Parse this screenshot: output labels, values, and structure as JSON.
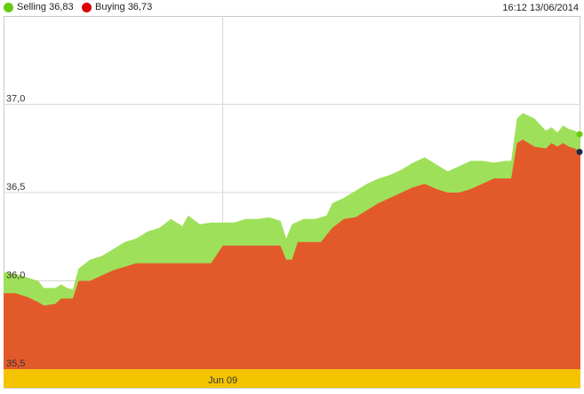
{
  "header": {
    "selling_label": "Selling 36,83",
    "buying_label": "Buying 36,73",
    "timestamp": "16:12 13/06/2014"
  },
  "colors": {
    "selling": "#9fe05a",
    "selling_dot": "#66cc11",
    "buying": "#e35a2a",
    "buying_dot": "#d90000",
    "axis_band": "#f5c400",
    "grid": "#d8d8d8"
  },
  "chart_data": {
    "type": "area",
    "ylim": [
      35.5,
      37.5
    ],
    "yticks": [
      {
        "value": 35.5,
        "label": "35,5"
      },
      {
        "value": 36.0,
        "label": "36,0"
      },
      {
        "value": 36.5,
        "label": "36,5"
      },
      {
        "value": 37.0,
        "label": "37,0"
      }
    ],
    "xlim": [
      0,
      100
    ],
    "xticks": [
      {
        "value": 38,
        "label": "Jun 09"
      }
    ],
    "grid": true,
    "series": [
      {
        "name": "Selling",
        "values": [
          [
            0,
            36.05
          ],
          [
            2,
            36.04
          ],
          [
            4,
            36.02
          ],
          [
            6,
            36.0
          ],
          [
            7,
            35.96
          ],
          [
            9,
            35.96
          ],
          [
            10,
            35.98
          ],
          [
            11,
            35.96
          ],
          [
            12,
            35.95
          ],
          [
            13,
            36.07
          ],
          [
            15,
            36.12
          ],
          [
            17,
            36.14
          ],
          [
            19,
            36.18
          ],
          [
            21,
            36.22
          ],
          [
            23,
            36.24
          ],
          [
            25,
            36.28
          ],
          [
            27,
            36.3
          ],
          [
            29,
            36.35
          ],
          [
            31,
            36.31
          ],
          [
            32,
            36.37
          ],
          [
            34,
            36.32
          ],
          [
            36,
            36.33
          ],
          [
            38,
            36.33
          ],
          [
            40,
            36.33
          ],
          [
            42,
            36.35
          ],
          [
            44,
            36.35
          ],
          [
            46,
            36.36
          ],
          [
            48,
            36.34
          ],
          [
            49,
            36.24
          ],
          [
            50,
            36.32
          ],
          [
            52,
            36.35
          ],
          [
            54,
            36.35
          ],
          [
            56,
            36.37
          ],
          [
            57,
            36.44
          ],
          [
            59,
            36.47
          ],
          [
            61,
            36.51
          ],
          [
            63,
            36.55
          ],
          [
            65,
            36.58
          ],
          [
            67,
            36.6
          ],
          [
            69,
            36.63
          ],
          [
            71,
            36.67
          ],
          [
            73,
            36.7
          ],
          [
            75,
            36.66
          ],
          [
            77,
            36.62
          ],
          [
            79,
            36.65
          ],
          [
            81,
            36.68
          ],
          [
            83,
            36.68
          ],
          [
            85,
            36.67
          ],
          [
            87,
            36.68
          ],
          [
            88,
            36.68
          ],
          [
            89,
            36.92
          ],
          [
            90,
            36.95
          ],
          [
            92,
            36.92
          ],
          [
            94,
            36.85
          ],
          [
            95,
            36.87
          ],
          [
            96,
            36.84
          ],
          [
            97,
            36.88
          ],
          [
            98,
            36.86
          ],
          [
            99,
            36.85
          ],
          [
            100,
            36.83
          ]
        ]
      },
      {
        "name": "Buying",
        "values": [
          [
            0,
            35.93
          ],
          [
            2,
            35.93
          ],
          [
            4,
            35.91
          ],
          [
            6,
            35.88
          ],
          [
            7,
            35.86
          ],
          [
            9,
            35.87
          ],
          [
            10,
            35.9
          ],
          [
            11,
            35.9
          ],
          [
            12,
            35.9
          ],
          [
            13,
            36.0
          ],
          [
            15,
            36.0
          ],
          [
            17,
            36.03
          ],
          [
            19,
            36.06
          ],
          [
            21,
            36.08
          ],
          [
            23,
            36.1
          ],
          [
            25,
            36.1
          ],
          [
            27,
            36.1
          ],
          [
            29,
            36.1
          ],
          [
            31,
            36.1
          ],
          [
            32,
            36.1
          ],
          [
            34,
            36.1
          ],
          [
            36,
            36.1
          ],
          [
            38,
            36.2
          ],
          [
            40,
            36.2
          ],
          [
            42,
            36.2
          ],
          [
            44,
            36.2
          ],
          [
            46,
            36.2
          ],
          [
            48,
            36.2
          ],
          [
            49,
            36.12
          ],
          [
            50,
            36.12
          ],
          [
            51,
            36.22
          ],
          [
            53,
            36.22
          ],
          [
            55,
            36.22
          ],
          [
            57,
            36.3
          ],
          [
            59,
            36.35
          ],
          [
            61,
            36.36
          ],
          [
            63,
            36.4
          ],
          [
            65,
            36.44
          ],
          [
            67,
            36.47
          ],
          [
            69,
            36.5
          ],
          [
            71,
            36.53
          ],
          [
            73,
            36.55
          ],
          [
            75,
            36.52
          ],
          [
            77,
            36.5
          ],
          [
            79,
            36.5
          ],
          [
            81,
            36.52
          ],
          [
            83,
            36.55
          ],
          [
            85,
            36.58
          ],
          [
            87,
            36.58
          ],
          [
            88,
            36.58
          ],
          [
            89,
            36.78
          ],
          [
            90,
            36.8
          ],
          [
            92,
            36.76
          ],
          [
            94,
            36.75
          ],
          [
            95,
            36.78
          ],
          [
            96,
            36.76
          ],
          [
            97,
            36.78
          ],
          [
            98,
            36.76
          ],
          [
            99,
            36.75
          ],
          [
            100,
            36.73
          ]
        ]
      }
    ]
  }
}
